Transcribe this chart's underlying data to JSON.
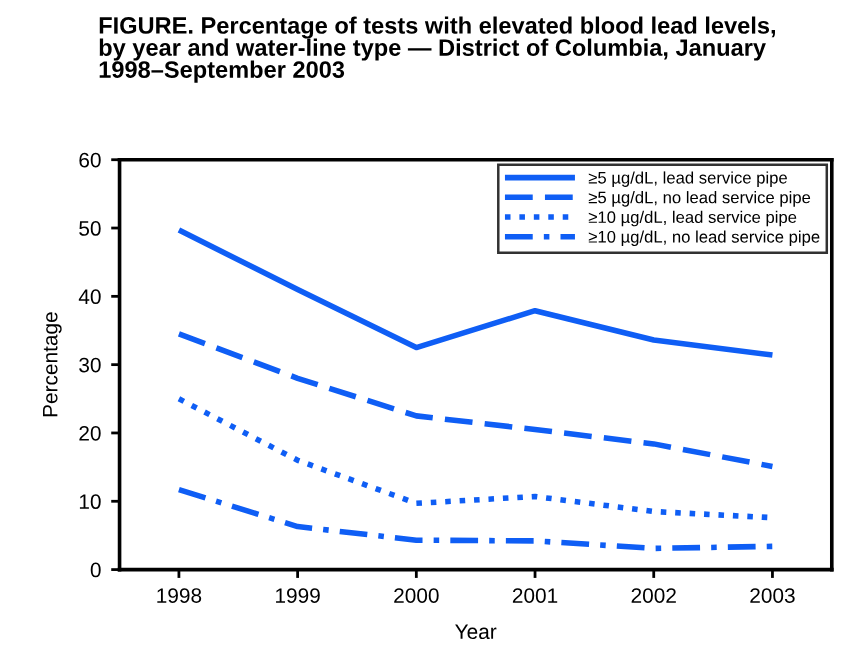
{
  "chart_data": {
    "type": "line",
    "title": "FIGURE. Percentage of tests with elevated blood lead levels,\nby year and water-line type — District of Columbia, January\n1998–September 2003",
    "xlabel": "Year",
    "ylabel": "Percentage",
    "categories": [
      "1998",
      "1999",
      "2000",
      "2001",
      "2002",
      "2003"
    ],
    "ylim": [
      0,
      60
    ],
    "yticks": [
      0,
      10,
      20,
      30,
      40,
      50,
      60
    ],
    "grid": false,
    "legend": "top right",
    "series": [
      {
        "name": "≥5 µg/dL, lead service pipe",
        "color": "#0f5ef5",
        "line_style": "solid",
        "values": [
          49.7,
          41,
          32.5,
          37.9,
          33.6,
          31.4
        ]
      },
      {
        "name": "≥5 µg/dL, no lead service pipe",
        "color": "#0f5ef5",
        "line_style": "dashed",
        "values": [
          34.5,
          28,
          22.5,
          20.5,
          18.4,
          15.1
        ]
      },
      {
        "name": "≥10 µg/dL, lead service pipe",
        "color": "#0f5ef5",
        "line_style": "dotted",
        "values": [
          25,
          16,
          9.7,
          10.7,
          8.5,
          7.6
        ]
      },
      {
        "name": "≥10 µg/dL, no lead service pipe",
        "color": "#0f5ef5",
        "line_style": "dashdot",
        "values": [
          11.7,
          6.3,
          4.3,
          4.2,
          3.1,
          3.4
        ]
      }
    ]
  }
}
